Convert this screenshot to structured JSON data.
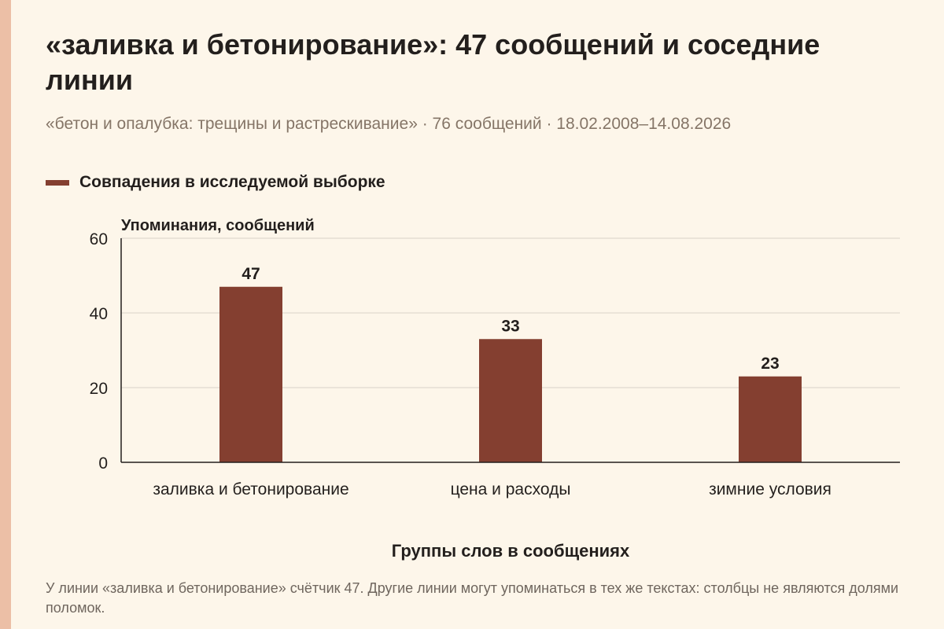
{
  "header": {
    "title": "«заливка и бетонирование»: 47 сообщений и соседние линии",
    "subtitle": "«бетон и опалубка: трещины и растрескивание» · 76 сообщений · 18.02.2008–14.08.2026"
  },
  "legend": {
    "label": "Совпадения в исследуемой выборке"
  },
  "footnote": "У линии «заливка и бетонирование» счётчик 47. Другие линии могут упоминаться в тех же текстах: столбцы не являются долями поломок.",
  "colors": {
    "bar": "#843f30",
    "grid": "#d9d2c8",
    "axis": "#231f1d",
    "background": "#fdf6ea"
  },
  "chart_data": {
    "type": "bar",
    "categories": [
      "заливка и бетонирование",
      "цена и расходы",
      "зимние условия"
    ],
    "series": [
      {
        "name": "Совпадения в исследуемой выборке",
        "values": [
          47,
          33,
          23
        ]
      }
    ],
    "xlabel": "Группы слов в сообщениях",
    "ylabel": "Упоминания, сообщений",
    "ylim": [
      0,
      60
    ],
    "yticks": [
      0,
      20,
      40,
      60
    ],
    "grid": true,
    "legend_position": "top-left",
    "data_labels": true
  }
}
